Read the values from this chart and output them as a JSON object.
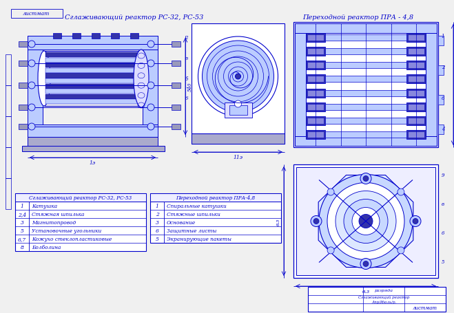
{
  "bg_color": "#f0f0f0",
  "page_bg": "#e8e8e8",
  "white": "#ffffff",
  "blue": "#0000cc",
  "blue2": "#1a1aff",
  "blue_fill": "#3333aa",
  "blue_light": "#8888dd",
  "blue_pale": "#bbccff",
  "blue_mid": "#4455cc",
  "gray_light": "#cccccc",
  "title1": "Сглаживающий реактор РС-32, РС-53",
  "title2": "Переходной реактор ПРА - 4,8",
  "table1_title": "Сглаживающий реактор РС-32, РС-53",
  "table1_rows": [
    [
      "1",
      "Катушка"
    ],
    [
      "2,4",
      "Стяжная шпилька"
    ],
    [
      "3",
      "Магнитопровод"
    ],
    [
      "5",
      "Установочные угольники"
    ],
    [
      "6,7",
      "Кожухо стеклопластиковые"
    ],
    [
      "8",
      "Болболина"
    ]
  ],
  "table2_title": "Переходной реактор ПРА-4,8",
  "table2_rows": [
    [
      "1",
      "Спиральные катушки"
    ],
    [
      "2",
      "Стяжные шпильки"
    ],
    [
      "3",
      "Основание"
    ],
    [
      "6",
      "Защитные листы"
    ],
    [
      "5",
      "Экранирующие пакеты"
    ]
  ]
}
